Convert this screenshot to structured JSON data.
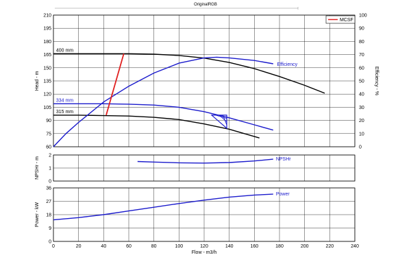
{
  "page_title": "OriginalRGB",
  "colors": {
    "blue": "#1a1acc",
    "red": "#e02020",
    "grid": "#000000"
  },
  "chart_data": [
    {
      "id": "head",
      "type": "line",
      "xlabel": "",
      "ylabel": "Head - m",
      "y2label": "Efficiency - %",
      "xlim": [
        0,
        240
      ],
      "ylim": [
        60,
        210
      ],
      "y2lim": [
        0,
        100
      ],
      "xticks": [
        0,
        20,
        40,
        60,
        80,
        100,
        120,
        140,
        160,
        180,
        200,
        220,
        240
      ],
      "yticks": [
        60,
        75,
        90,
        105,
        120,
        135,
        150,
        165,
        180,
        195,
        210
      ],
      "y2ticks": [
        0,
        10,
        20,
        30,
        40,
        50,
        60,
        70,
        80,
        90,
        100
      ],
      "grid": true,
      "legend": {
        "position": "top-right",
        "entries": [
          {
            "name": "MCSF",
            "color": "#e02020"
          }
        ]
      },
      "series": [
        {
          "name": "400 mm",
          "color": "#000000",
          "axis": "y",
          "x": [
            0,
            20,
            40,
            60,
            80,
            100,
            120,
            140,
            160,
            180,
            200,
            216
          ],
          "y": [
            166,
            166,
            166,
            166,
            165.5,
            164,
            161,
            156,
            149,
            140,
            130,
            121
          ]
        },
        {
          "name": "334 mm",
          "color": "#1a1acc",
          "axis": "y",
          "x": [
            0,
            20,
            40,
            60,
            80,
            100,
            120,
            140,
            160,
            175
          ],
          "y": [
            109,
            109,
            109,
            108.5,
            107.5,
            105,
            100,
            93,
            85,
            79
          ]
        },
        {
          "name": "315 mm",
          "color": "#000000",
          "axis": "y",
          "x": [
            0,
            20,
            40,
            60,
            80,
            100,
            120,
            140,
            164
          ],
          "y": [
            96,
            96,
            95.5,
            95,
            93.5,
            91,
            86,
            80,
            70
          ]
        },
        {
          "name": "Efficiency",
          "color": "#1a1acc",
          "axis": "y2",
          "x": [
            0,
            10,
            20,
            40,
            60,
            80,
            100,
            120,
            130,
            140,
            160,
            175
          ],
          "y": [
            0,
            10,
            18.5,
            34,
            46,
            56,
            63.5,
            67.5,
            68,
            67.5,
            65.5,
            63
          ]
        },
        {
          "name": "MCSF",
          "color": "#e02020",
          "axis": "y",
          "x": [
            42,
            56
          ],
          "y": [
            96,
            166
          ]
        }
      ],
      "annotations": [
        {
          "text": "400 mm",
          "x": 1,
          "y": 166
        },
        {
          "text": "334 mm",
          "x": 1,
          "y": 109
        },
        {
          "text": "315 mm",
          "x": 1,
          "y": 96
        },
        {
          "text": "Efficiency",
          "x": 178,
          "y": 63
        }
      ],
      "bep_marker": {
        "x": [
          126,
          138,
          138
        ],
        "y": [
          96,
          96,
          81
        ]
      }
    },
    {
      "id": "npshr",
      "type": "line",
      "ylabel": "NPSHr - m",
      "xlim": [
        0,
        240
      ],
      "ylim": [
        0,
        2
      ],
      "yticks": [
        0,
        1,
        2
      ],
      "grid": true,
      "series": [
        {
          "name": "NPSHr",
          "color": "#1a1acc",
          "x": [
            67,
            80,
            100,
            120,
            140,
            160,
            175
          ],
          "y": [
            1.5,
            1.46,
            1.4,
            1.38,
            1.42,
            1.54,
            1.68
          ]
        }
      ]
    },
    {
      "id": "power",
      "type": "line",
      "xlabel": "Flow - m3/h",
      "ylabel": "Power - kW",
      "xlim": [
        0,
        240
      ],
      "ylim": [
        0,
        36
      ],
      "xticks": [
        0,
        20,
        40,
        60,
        80,
        100,
        120,
        140,
        160,
        180,
        200,
        220,
        240
      ],
      "yticks": [
        0,
        9,
        18,
        27,
        36
      ],
      "grid": true,
      "series": [
        {
          "name": "Power",
          "color": "#1a1acc",
          "x": [
            0,
            20,
            40,
            60,
            80,
            100,
            120,
            140,
            160,
            175
          ],
          "y": [
            14.5,
            16,
            18,
            20.5,
            23,
            25.5,
            27.8,
            29.8,
            31.2,
            31.8
          ]
        }
      ]
    }
  ]
}
